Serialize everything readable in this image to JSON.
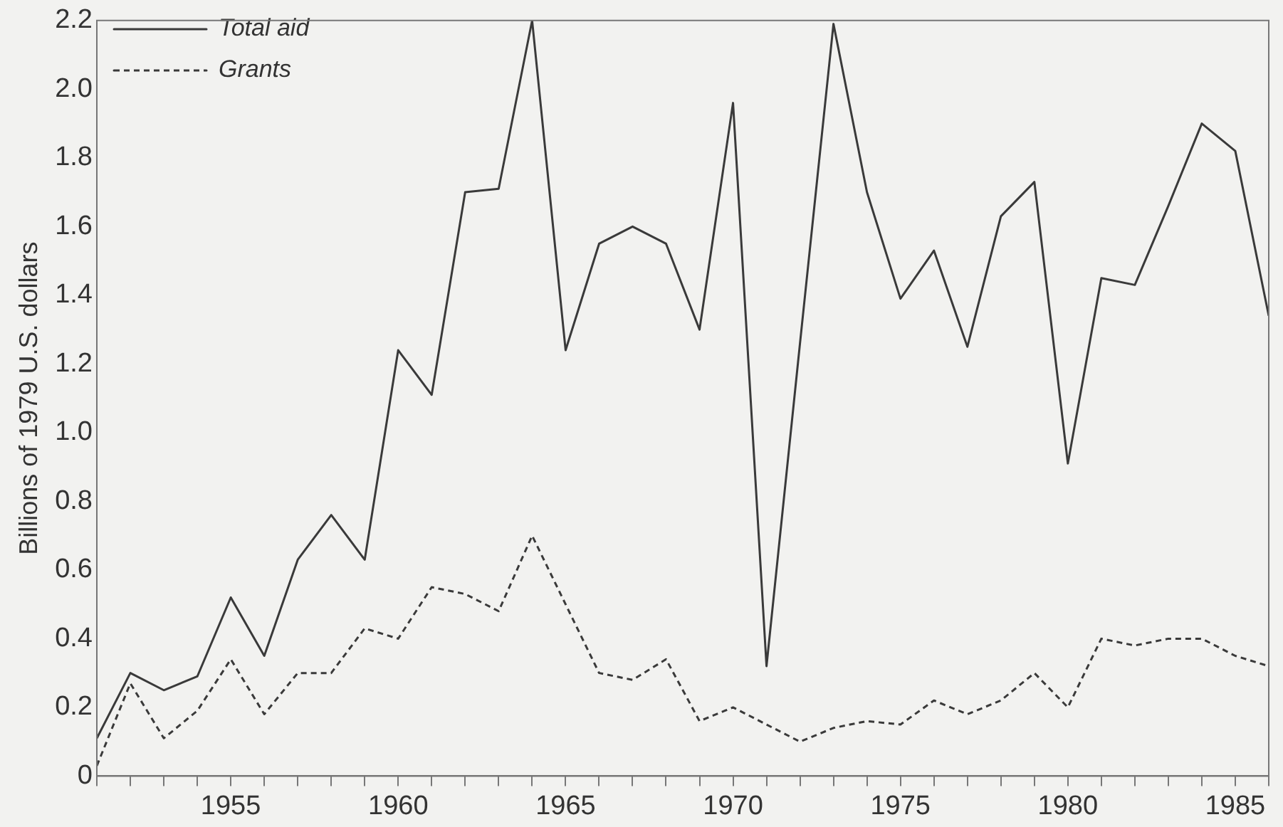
{
  "chart_data": {
    "type": "line",
    "ylabel": "Billions of 1979 U.S. dollars",
    "x": [
      1951,
      1952,
      1953,
      1954,
      1955,
      1956,
      1957,
      1958,
      1959,
      1960,
      1961,
      1962,
      1963,
      1964,
      1965,
      1966,
      1967,
      1968,
      1969,
      1970,
      1971,
      1972,
      1973,
      1974,
      1975,
      1976,
      1977,
      1978,
      1979,
      1980,
      1981,
      1982,
      1983,
      1984,
      1985,
      1986
    ],
    "series": [
      {
        "name": "Total aid",
        "color": "#3a3a3a",
        "line_style": "solid",
        "values": [
          0.11,
          0.3,
          0.25,
          0.29,
          0.52,
          0.35,
          0.63,
          0.76,
          0.63,
          1.24,
          1.11,
          1.7,
          1.71,
          2.2,
          1.24,
          1.55,
          1.6,
          1.55,
          1.3,
          1.96,
          0.32,
          1.26,
          2.19,
          1.7,
          1.39,
          1.53,
          1.25,
          1.63,
          1.73,
          0.91,
          1.45,
          1.43,
          1.66,
          1.9,
          1.82,
          1.34
        ]
      },
      {
        "name": "Grants",
        "color": "#3a3a3a",
        "line_style": "dashed",
        "values": [
          0.03,
          0.27,
          0.11,
          0.19,
          0.34,
          0.18,
          0.3,
          0.3,
          0.43,
          0.4,
          0.55,
          0.53,
          0.48,
          0.7,
          0.5,
          0.3,
          0.28,
          0.34,
          0.16,
          0.2,
          0.15,
          0.1,
          0.14,
          0.16,
          0.15,
          0.22,
          0.18,
          0.22,
          0.3,
          0.2,
          0.4,
          0.38,
          0.4,
          0.4,
          0.35,
          0.32
        ]
      }
    ],
    "xlim": [
      1951,
      1986
    ],
    "xticks": [
      {
        "value": 1951,
        "label": null
      },
      {
        "value": 1952,
        "label": null
      },
      {
        "value": 1953,
        "label": null
      },
      {
        "value": 1954,
        "label": null
      },
      1955,
      {
        "value": 1956,
        "label": null
      },
      {
        "value": 1957,
        "label": null
      },
      {
        "value": 1958,
        "label": null
      },
      {
        "value": 1959,
        "label": null
      },
      1960,
      {
        "value": 1961,
        "label": null
      },
      {
        "value": 1962,
        "label": null
      },
      {
        "value": 1963,
        "label": null
      },
      {
        "value": 1964,
        "label": null
      },
      1965,
      {
        "value": 1966,
        "label": null
      },
      {
        "value": 1967,
        "label": null
      },
      {
        "value": 1968,
        "label": null
      },
      {
        "value": 1969,
        "label": null
      },
      1970,
      {
        "value": 1971,
        "label": null
      },
      {
        "value": 1972,
        "label": null
      },
      {
        "value": 1973,
        "label": null
      },
      {
        "value": 1974,
        "label": null
      },
      1975,
      {
        "value": 1976,
        "label": null
      },
      {
        "value": 1977,
        "label": null
      },
      {
        "value": 1978,
        "label": null
      },
      {
        "value": 1979,
        "label": null
      },
      1980,
      {
        "value": 1981,
        "label": null
      },
      {
        "value": 1982,
        "label": null
      },
      {
        "value": 1983,
        "label": null
      },
      {
        "value": 1984,
        "label": null
      },
      1985,
      {
        "value": 1986,
        "label": null
      }
    ],
    "ylim": [
      0,
      2.2
    ],
    "yticks": [
      0,
      0.2,
      0.4,
      0.6,
      0.8,
      {
        "value": 1,
        "label": "1.0"
      },
      1.2,
      1.4,
      1.6,
      1.8,
      {
        "value": 2,
        "label": "2.0"
      },
      2.2
    ],
    "legend": "top left",
    "marker": "none"
  }
}
